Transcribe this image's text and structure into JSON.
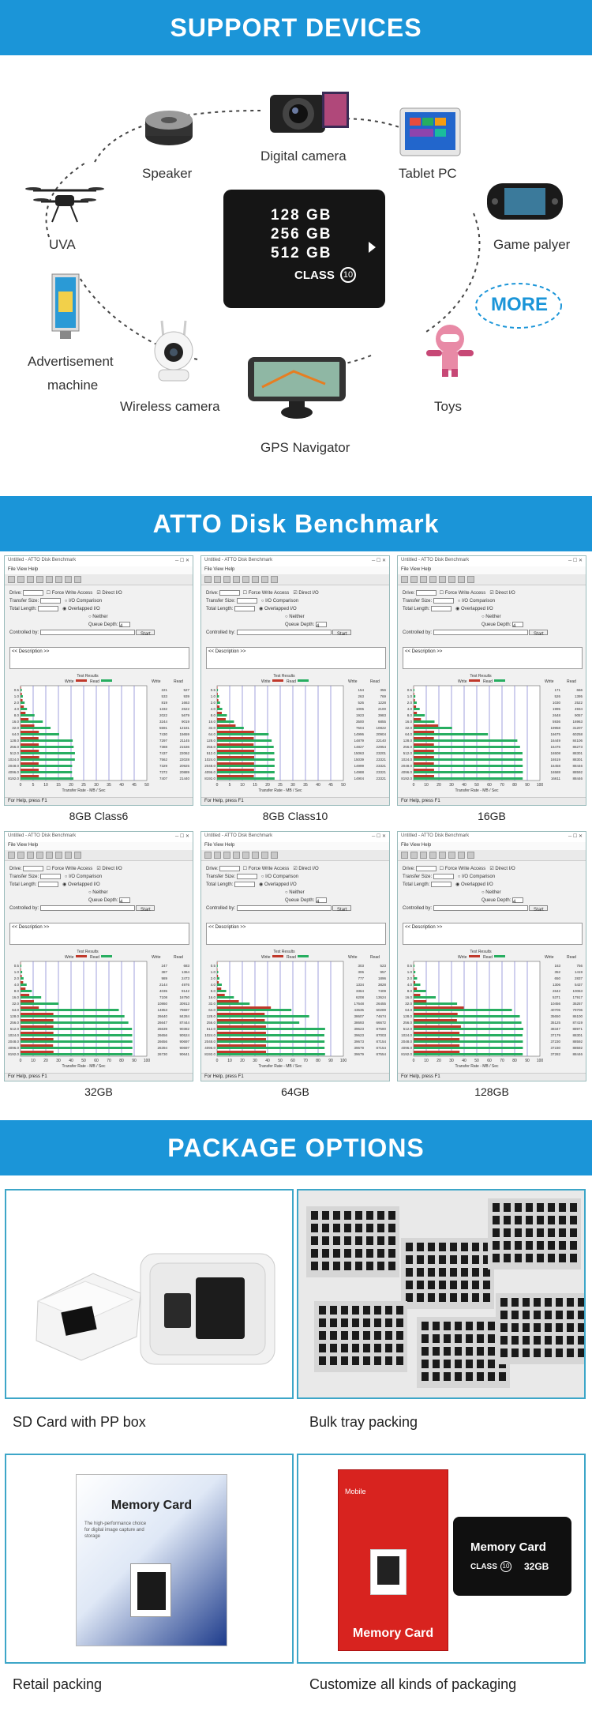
{
  "support": {
    "title": "SUPPORT DEVICES",
    "devices": [
      {
        "id": "speaker",
        "label": "Speaker"
      },
      {
        "id": "camera",
        "label": "Digital camera"
      },
      {
        "id": "tablet",
        "label": "Tablet PC"
      },
      {
        "id": "uva",
        "label": "UVA"
      },
      {
        "id": "game",
        "label": "Game palyer"
      },
      {
        "id": "ad",
        "label": "Advertisement machine",
        "line1": "Advertisement",
        "line2": "machine"
      },
      {
        "id": "wireless",
        "label": "Wireless camera"
      },
      {
        "id": "toys",
        "label": "Toys"
      },
      {
        "id": "gps",
        "label": "GPS Navigator"
      }
    ],
    "more": "MORE",
    "card": {
      "cap1": "128  GB",
      "cap2": "256  GB",
      "cap3": "512  GB",
      "class_label": "CLASS",
      "class_num": "10"
    }
  },
  "benchmark": {
    "title": "ATTO Disk Benchmark",
    "window_title": "Untitled - ATTO Disk Benchmark",
    "menu": "File  View  Help",
    "drive_label": "Drive:",
    "transfer_label": "Transfer Size:",
    "total_label": "Total Length:",
    "force_label": "Force Write Access",
    "direct_label": "Direct I/O",
    "io_comp": "I/O Comparison",
    "overlapped": "Overlapped I/O",
    "neither": "Neither",
    "queue_label": "Queue Depth:",
    "queue_val": "4",
    "controlled_label": "Controlled by:",
    "start": "Start",
    "desc": "<< Description >>",
    "results": "Test Results",
    "write": "Write",
    "read": "Read",
    "xaxis": "Transfer Rate - MB / Sec",
    "status": "For Help, press F1",
    "sizes": [
      "0.5",
      "1.0",
      "2.0",
      "4.0",
      "8.0",
      "16.0",
      "32.0",
      "64.0",
      "128.0",
      "256.0",
      "512.0",
      "1024.0",
      "2048.0",
      "4096.0",
      "8192.0"
    ],
    "panels": [
      {
        "label": "8GB Class6",
        "max": 50,
        "ticks": [
          "0",
          "5",
          "10",
          "15",
          "20",
          "25",
          "30",
          "35",
          "40",
          "45",
          "50"
        ],
        "write": [
          221,
          533,
          819,
          1332,
          2022,
          3244,
          5591,
          7430,
          7297,
          7388,
          7437,
          7562,
          7329,
          7372,
          7407
        ],
        "read": [
          527,
          939,
          1663,
          2622,
          5679,
          9019,
          12181,
          15659,
          21145,
          21536,
          22062,
          22028,
          20925,
          20889,
          21440
        ]
      },
      {
        "label": "8GB Class10",
        "max": 50,
        "ticks": [
          "0",
          "5",
          "10",
          "15",
          "20",
          "25",
          "30",
          "35",
          "40",
          "45",
          "50"
        ],
        "write": [
          154,
          263,
          526,
          1006,
          1923,
          3500,
          7504,
          14996,
          14879,
          14827,
          15063,
          15039,
          14999,
          14988,
          14904
        ],
        "read": [
          356,
          769,
          1228,
          2100,
          3983,
          6855,
          10822,
          20904,
          22140,
          22954,
          23201,
          23321,
          23321,
          23321,
          23321
        ]
      },
      {
        "label": "16GB",
        "max": 100,
        "ticks": [
          "0",
          "10",
          "20",
          "30",
          "40",
          "50",
          "60",
          "70",
          "80",
          "90",
          "100"
        ],
        "write": [
          171,
          526,
          1030,
          1995,
          2648,
          5936,
          19958,
          16675,
          16449,
          16476,
          16508,
          16519,
          16458,
          16588,
          16611
        ],
        "read": [
          666,
          1395,
          2522,
          4934,
          9057,
          16963,
          31207,
          60258,
          84106,
          86273,
          88301,
          88301,
          88446,
          88592,
          88446
        ]
      },
      {
        "label": "32GB",
        "max": 100,
        "ticks": [
          "0",
          "10",
          "20",
          "30",
          "40",
          "50",
          "60",
          "70",
          "80",
          "90",
          "100"
        ],
        "write": [
          247,
          387,
          989,
          2144,
          4035,
          7108,
          10860,
          14853,
          26640,
          26647,
          26639,
          26656,
          26656,
          26394,
          26730
        ],
        "read": [
          683,
          1364,
          2473,
          4976,
          9142,
          16750,
          30913,
          79697,
          84284,
          87444,
          90382,
          90524,
          90697,
          90697,
          90641
        ]
      },
      {
        "label": "64GB",
        "max": 100,
        "ticks": [
          "0",
          "10",
          "20",
          "30",
          "40",
          "50",
          "60",
          "70",
          "80",
          "90",
          "100"
        ],
        "write": [
          303,
          306,
          777,
          1334,
          3364,
          6208,
          17648,
          43635,
          38607,
          38693,
          39623,
          39623,
          39673,
          39679,
          39679
        ],
        "read": [
          523,
          957,
          1896,
          3828,
          7409,
          13624,
          26455,
          60289,
          74674,
          66672,
          87580,
          87003,
          87154,
          87154,
          87554
        ]
      },
      {
        "label": "128GB",
        "max": 100,
        "ticks": [
          "0",
          "10",
          "20",
          "30",
          "40",
          "50",
          "60",
          "70",
          "80",
          "90",
          "100"
        ],
        "write": [
          163,
          352,
          650,
          1306,
          2642,
          5371,
          10456,
          40705,
          35650,
          35125,
          38347,
          37179,
          37230,
          37230,
          37282
        ],
        "read": [
          756,
          1419,
          2837,
          5437,
          10063,
          17917,
          35257,
          79706,
          86100,
          87419,
          88971,
          88301,
          88592,
          88592,
          88446
        ]
      }
    ]
  },
  "package": {
    "title": "PACKAGE  OPTIONS",
    "items": [
      {
        "label": "SD Card with PP box"
      },
      {
        "label": "Bulk tray packing"
      },
      {
        "label": "Retail  packing",
        "pack_title": "Memory Card",
        "pack_sub": "The high-performance choice for digital image capture and storage"
      },
      {
        "label": "Customize all kinds of packaging",
        "red_top": "Mobile",
        "red_title": "Memory Card",
        "card_title": "Memory Card",
        "card_class": "CLASS",
        "card_class_num": "10",
        "card_size": "32GB"
      }
    ]
  }
}
